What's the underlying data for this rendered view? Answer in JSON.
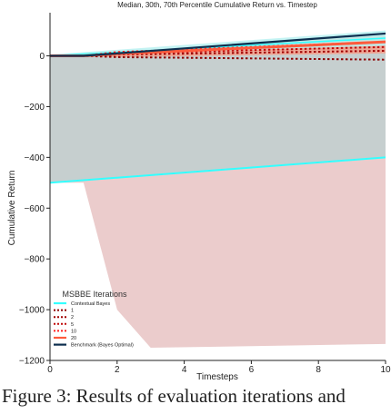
{
  "caption": "Figure 3: Results of evaluation iterations and",
  "chart_data": {
    "type": "line",
    "title": "Median, 30th, 70th Percentile Cumulative Return vs. Timestep",
    "xlabel": "Timesteps",
    "ylabel": "Cumulative Return",
    "xlim": [
      0,
      10
    ],
    "ylim": [
      -1200,
      170
    ],
    "xticks": [
      0,
      2,
      4,
      6,
      8,
      10
    ],
    "yticks": [
      0,
      -200,
      -400,
      -600,
      -800,
      -1000,
      -1200
    ],
    "grid": false,
    "legend": {
      "title": "MSBBE Iterations",
      "placement": "lower-left",
      "entries": [
        {
          "label": "Contextual Bayes",
          "color": "#33ffff",
          "style": "solid"
        },
        {
          "label": "1",
          "color": "#8b0000",
          "style": "dotted"
        },
        {
          "label": "2",
          "color": "#a00000",
          "style": "dotted"
        },
        {
          "label": "5",
          "color": "#c00a0a",
          "style": "dotted"
        },
        {
          "label": "10",
          "color": "#ff2020",
          "style": "dotted"
        },
        {
          "label": "20",
          "color": "#ff5a3c",
          "style": "solid"
        },
        {
          "label": "Benchmark (Bayes Optimal)",
          "color": "#0d2f4f",
          "style": "solid"
        }
      ]
    },
    "bands": [
      {
        "name": "20",
        "color": "#e8c3c3",
        "x": [
          0,
          1,
          2,
          3,
          10
        ],
        "lower": [
          -500,
          -500,
          -1000,
          -1150,
          -1135
        ],
        "upper": [
          0,
          0,
          10,
          25,
          80
        ]
      },
      {
        "name": "Contextual Bayes",
        "color": "#bfcfcf",
        "x": [
          0,
          10
        ],
        "lower": [
          -500,
          -400
        ],
        "upper": [
          0,
          60
        ]
      },
      {
        "name": "20 upper",
        "color": "#f4a08c",
        "x": [
          0,
          1,
          2,
          10
        ],
        "lower": [
          0,
          0,
          -5,
          10
        ],
        "upper": [
          0,
          0,
          15,
          80
        ]
      },
      {
        "name": "Contextual Bayes upper",
        "color": "#b9f1f1",
        "x": [
          0,
          10
        ],
        "lower": [
          0,
          40
        ],
        "upper": [
          5,
          100
        ]
      }
    ],
    "series": [
      {
        "name": "Contextual Bayes",
        "color": "#33ffff",
        "style": "solid",
        "width": 2,
        "x": [
          0,
          10
        ],
        "y": [
          -500,
          -400
        ]
      },
      {
        "name": "Contextual Bayes",
        "color": "#33ffff",
        "style": "solid",
        "width": 1.5,
        "x": [
          0,
          10
        ],
        "y": [
          0,
          70
        ]
      },
      {
        "name": "1",
        "color": "#8b0000",
        "style": "dotted",
        "width": 2,
        "x": [
          0,
          1,
          2,
          10
        ],
        "y": [
          0,
          0,
          -5,
          -15
        ]
      },
      {
        "name": "2",
        "color": "#a00000",
        "style": "dotted",
        "width": 2,
        "x": [
          0,
          1,
          2,
          10
        ],
        "y": [
          0,
          0,
          5,
          20
        ]
      },
      {
        "name": "5",
        "color": "#c00a0a",
        "style": "dotted",
        "width": 2,
        "x": [
          0,
          1,
          2,
          10
        ],
        "y": [
          0,
          0,
          10,
          35
        ]
      },
      {
        "name": "10",
        "color": "#ff2020",
        "style": "dotted",
        "width": 2,
        "x": [
          0,
          1,
          2,
          10
        ],
        "y": [
          0,
          0,
          15,
          55
        ]
      },
      {
        "name": "20",
        "color": "#ff5a3c",
        "style": "solid",
        "width": 3,
        "x": [
          0,
          1,
          2,
          10
        ],
        "y": [
          0,
          0,
          8,
          55
        ]
      },
      {
        "name": "Benchmark (Bayes Optimal)",
        "color": "#0d2f4f",
        "style": "solid",
        "width": 2.2,
        "x": [
          0,
          1,
          10
        ],
        "y": [
          0,
          0,
          88
        ]
      }
    ]
  }
}
